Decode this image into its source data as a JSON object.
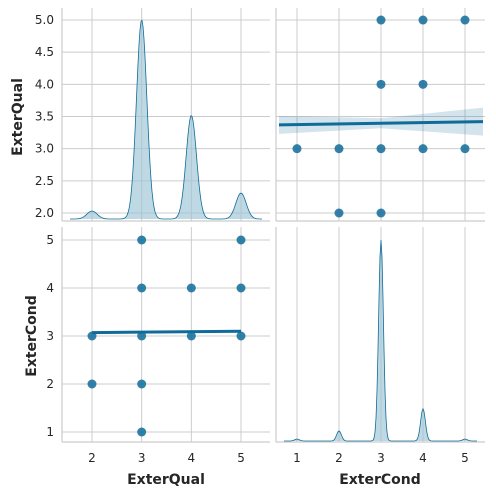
{
  "chart_data": {
    "type": "pairplot",
    "variables": [
      "ExterQual",
      "ExterCond"
    ],
    "colors": {
      "main": "#0f6b99",
      "kde_fill": "#9cc4d6",
      "grid": "#cccccc",
      "spine": "#cccccc"
    },
    "grid": true,
    "axes": {
      "ExterQual": {
        "ticks": [
          2.0,
          2.5,
          3.0,
          3.5,
          4.0,
          4.5,
          5.0
        ],
        "tick_labels_y": [
          "2.0",
          "2.5",
          "3.0",
          "3.5",
          "4.0",
          "4.5",
          "5.0"
        ],
        "tick_labels_x": [
          "2",
          "3",
          "4",
          "5"
        ]
      },
      "ExterCond": {
        "ticks": [
          1,
          2,
          3,
          4,
          5
        ],
        "tick_labels": [
          "1",
          "2",
          "3",
          "4",
          "5"
        ]
      }
    },
    "diag_exterqual_kde": {
      "x": [
        2,
        3,
        4,
        5
      ],
      "peak_density": [
        0.04,
        1.0,
        0.52,
        0.13
      ]
    },
    "diag_extercond_kde": {
      "x": [
        1,
        2,
        3,
        4,
        5
      ],
      "peak_density": [
        0.01,
        0.05,
        1.0,
        0.16,
        0.01
      ]
    },
    "scatter_exterqual_vs_extercond": {
      "x_var": "ExterCond",
      "y_var": "ExterQual",
      "points": [
        [
          5,
          5
        ],
        [
          3,
          5
        ],
        [
          4,
          5
        ],
        [
          3,
          4
        ],
        [
          4,
          4
        ],
        [
          1,
          3
        ],
        [
          2,
          3
        ],
        [
          3,
          3
        ],
        [
          4,
          3
        ],
        [
          5,
          3
        ],
        [
          2,
          2
        ],
        [
          3,
          2
        ]
      ],
      "regression": {
        "x_range": [
          1,
          5
        ],
        "y_start": 3.37,
        "y_end": 3.42
      }
    },
    "scatter_extercond_vs_exterqual": {
      "x_var": "ExterQual",
      "y_var": "ExterCond",
      "points": [
        [
          3,
          5
        ],
        [
          5,
          5
        ],
        [
          3,
          4
        ],
        [
          4,
          4
        ],
        [
          5,
          4
        ],
        [
          2,
          3
        ],
        [
          3,
          3
        ],
        [
          4,
          3
        ],
        [
          5,
          3
        ],
        [
          2,
          2
        ],
        [
          3,
          2
        ],
        [
          3,
          1
        ]
      ],
      "regression": {
        "x_range": [
          2,
          5
        ],
        "y_start": 3.07,
        "y_end": 3.1
      }
    }
  }
}
